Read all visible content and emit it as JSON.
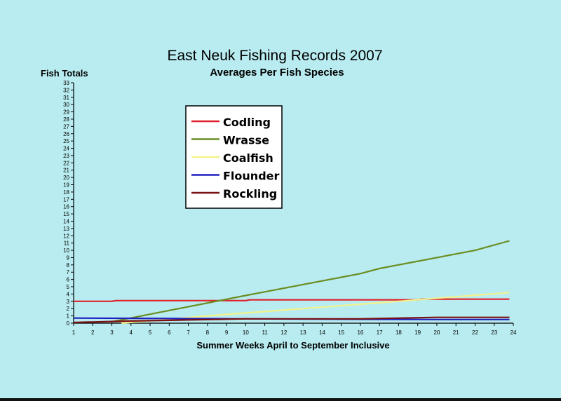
{
  "chart_data": {
    "type": "line",
    "title": "East Neuk Fishing Records 2007",
    "subtitle": "Averages Per Fish Species",
    "ylabel": "Fish Totals",
    "xlabel": "Summer Weeks April to September Inclusive",
    "xlim": [
      1,
      24
    ],
    "ylim": [
      0,
      33
    ],
    "x_ticks": [
      1,
      2,
      3,
      4,
      5,
      6,
      7,
      8,
      9,
      10,
      11,
      12,
      13,
      14,
      15,
      16,
      17,
      18,
      19,
      20,
      21,
      22,
      23,
      24
    ],
    "y_ticks": [
      0,
      1,
      2,
      3,
      4,
      5,
      6,
      7,
      8,
      9,
      10,
      11,
      12,
      13,
      14,
      15,
      16,
      17,
      18,
      19,
      20,
      21,
      22,
      23,
      24,
      25,
      26,
      27,
      28,
      29,
      30,
      31,
      32,
      33
    ],
    "grid": false,
    "legend_position": "upper-left-center",
    "series": [
      {
        "name": "Codling",
        "color": "#e0202a",
        "points": [
          [
            1,
            3.0
          ],
          [
            3,
            3.0
          ],
          [
            3.2,
            3.1
          ],
          [
            10,
            3.1
          ],
          [
            10.2,
            3.2
          ],
          [
            19,
            3.2
          ],
          [
            19.2,
            3.3
          ],
          [
            23.8,
            3.3
          ]
        ]
      },
      {
        "name": "Wrasse",
        "color": "#6b8e23",
        "points": [
          [
            3,
            0.2
          ],
          [
            10,
            3.8
          ],
          [
            11,
            4.3
          ],
          [
            16,
            6.8
          ],
          [
            17,
            7.5
          ],
          [
            22,
            10.0
          ],
          [
            23.8,
            11.3
          ]
        ]
      },
      {
        "name": "Coalfish",
        "color": "#f2f28c",
        "points": [
          [
            3.5,
            0.0
          ],
          [
            8,
            1.0
          ],
          [
            13,
            2.0
          ],
          [
            18,
            3.0
          ],
          [
            23.8,
            4.2
          ]
        ]
      },
      {
        "name": "Flounder",
        "color": "#2020c0",
        "points": [
          [
            1,
            0.7
          ],
          [
            10,
            0.6
          ],
          [
            20,
            0.5
          ],
          [
            23.8,
            0.5
          ]
        ]
      },
      {
        "name": "Rockling",
        "color": "#7a1010",
        "points": [
          [
            1,
            0.1
          ],
          [
            4,
            0.3
          ],
          [
            10,
            0.6
          ],
          [
            16,
            0.6
          ],
          [
            20,
            0.8
          ],
          [
            23.8,
            0.8
          ]
        ]
      }
    ]
  }
}
